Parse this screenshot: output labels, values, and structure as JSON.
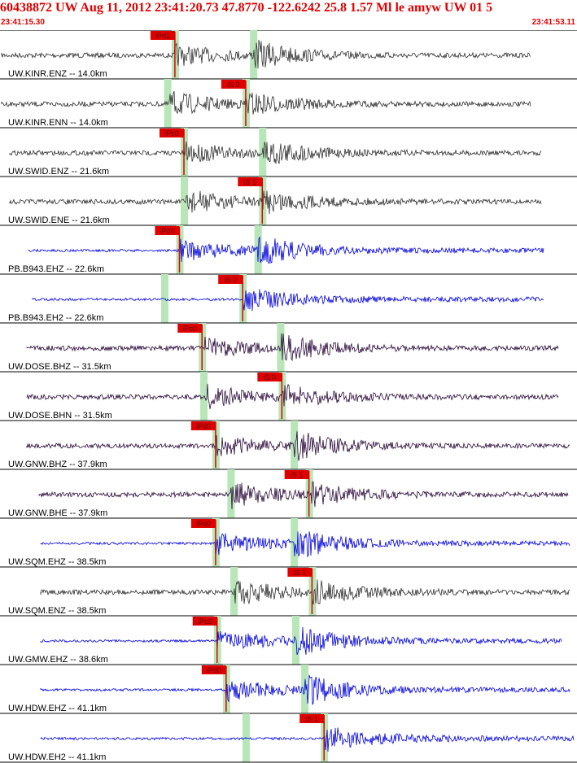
{
  "header": {
    "title": "60438872 UW Aug 11, 2012 23:41:20.73    47.8770 -122.6242 25.8 1.57 Ml le amyw UW 01    5",
    "time_start": "23:41:15.30",
    "time_end": "23:41:53.11"
  },
  "colors": {
    "header_text": "#e00000",
    "trace_gray": "#303030",
    "trace_blue": "#0000e0",
    "trace_purple": "#2a0a3a",
    "pick_marker": "#e00000",
    "pick_window": "#b8e6b8"
  },
  "traces": [
    {
      "label": "UW.KINR.ENZ -- 14.0km",
      "pick": "iPd1",
      "color": "gray",
      "pick_time": 11.5,
      "phase": "P"
    },
    {
      "label": "UW.KINR.ENN -- 14.0km",
      "pick": "iS 0",
      "color": "gray",
      "pick_time": 16.2,
      "phase": "S"
    },
    {
      "label": "UW.SWID.ENZ -- 21.6km",
      "pick": "iPc0",
      "color": "gray",
      "pick_time": 12.1,
      "phase": "P"
    },
    {
      "label": "UW.SWID.ENE -- 21.6km",
      "pick": "iS 1",
      "color": "gray",
      "pick_time": 17.3,
      "phase": "S"
    },
    {
      "label": "PB.B943.EHZ -- 22.6km",
      "pick": "iPd0",
      "color": "blue",
      "pick_time": 11.8,
      "phase": "P"
    },
    {
      "label": "PB.B943.EH2 -- 22.6km",
      "pick": "iS 0",
      "color": "blue",
      "pick_time": 16.0,
      "phase": "S"
    },
    {
      "label": "UW.DOSE.BHZ -- 31.5km",
      "pick": "iPc0",
      "color": "purple",
      "pick_time": 13.3,
      "phase": "P"
    },
    {
      "label": "UW.DOSE.BHN -- 31.5km",
      "pick": "iS 0",
      "color": "purple",
      "pick_time": 18.6,
      "phase": "S"
    },
    {
      "label": "UW.GNW.BHZ -- 37.9km",
      "pick": "iPd0",
      "color": "purple",
      "pick_time": 14.2,
      "phase": "P"
    },
    {
      "label": "UW.GNW.BHE -- 37.9km",
      "pick": "iS 1",
      "color": "purple",
      "pick_time": 20.4,
      "phase": "S"
    },
    {
      "label": "UW.SQM.EHZ -- 38.5km",
      "pick": "iPd0",
      "color": "blue",
      "pick_time": 14.2,
      "phase": "P"
    },
    {
      "label": "UW.SQM.ENZ -- 38.5km",
      "pick": "iS 1",
      "color": "gray",
      "pick_time": 20.6,
      "phase": "S"
    },
    {
      "label": "UW.GMW.EHZ -- 38.6km",
      "pick": "iPc0",
      "color": "blue",
      "pick_time": 14.3,
      "phase": "P"
    },
    {
      "label": "UW.HDW.EHZ -- 41.1km",
      "pick": "iPd0",
      "color": "blue",
      "pick_time": 14.9,
      "phase": "P"
    },
    {
      "label": "UW.HDW.EH2 -- 41.1km",
      "pick": "iS 1",
      "color": "blue",
      "pick_time": 21.4,
      "phase": "S"
    }
  ]
}
